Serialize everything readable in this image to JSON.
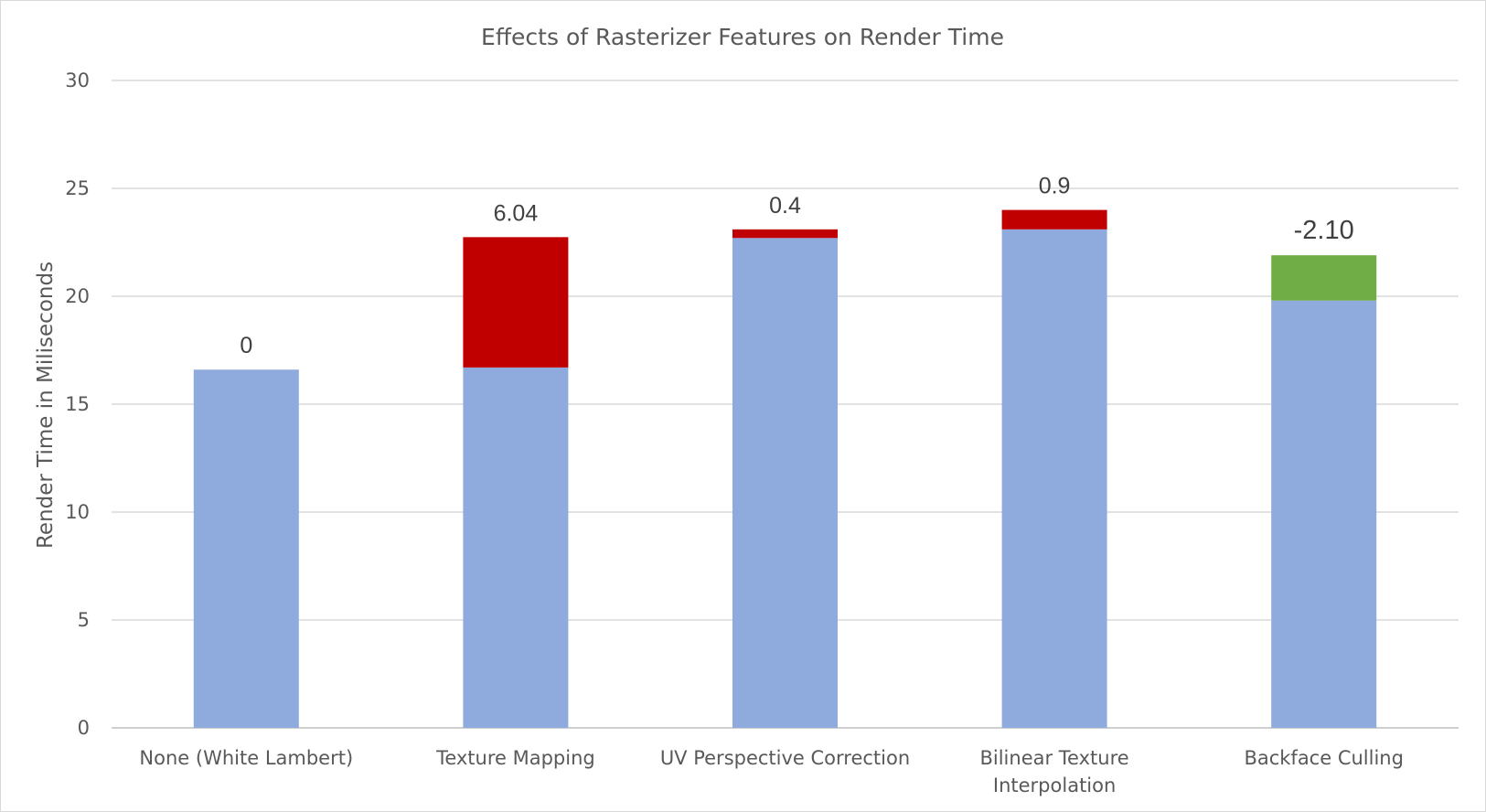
{
  "chart_data": {
    "type": "bar",
    "stacked": true,
    "title": "Effects of Rasterizer Features on Render Time",
    "xlabel": "",
    "ylabel": "Render Time in Miliseconds",
    "ylim": [
      0,
      30
    ],
    "yticks": [
      0,
      5,
      10,
      15,
      20,
      25,
      30
    ],
    "grid": true,
    "legend": "none",
    "categories": [
      [
        "None (White Lambert)"
      ],
      [
        "Texture Mapping"
      ],
      [
        "UV Perspective Correction"
      ],
      [
        "Bilinear Texture",
        "Interpolation"
      ],
      [
        "Backface Culling"
      ]
    ],
    "series": [
      {
        "color": "#8faadc",
        "values": [
          16.6,
          16.7,
          22.7,
          23.1,
          19.8
        ]
      },
      {
        "colors": [
          "#c00000",
          "#c00000",
          "#c00000",
          "#c00000",
          "#70ad47"
        ],
        "values": [
          0,
          6.04,
          0.4,
          0.9,
          2.1
        ]
      }
    ],
    "data_labels": [
      "0",
      "6.04",
      "0.4",
      "0.9",
      "-2.10"
    ]
  }
}
